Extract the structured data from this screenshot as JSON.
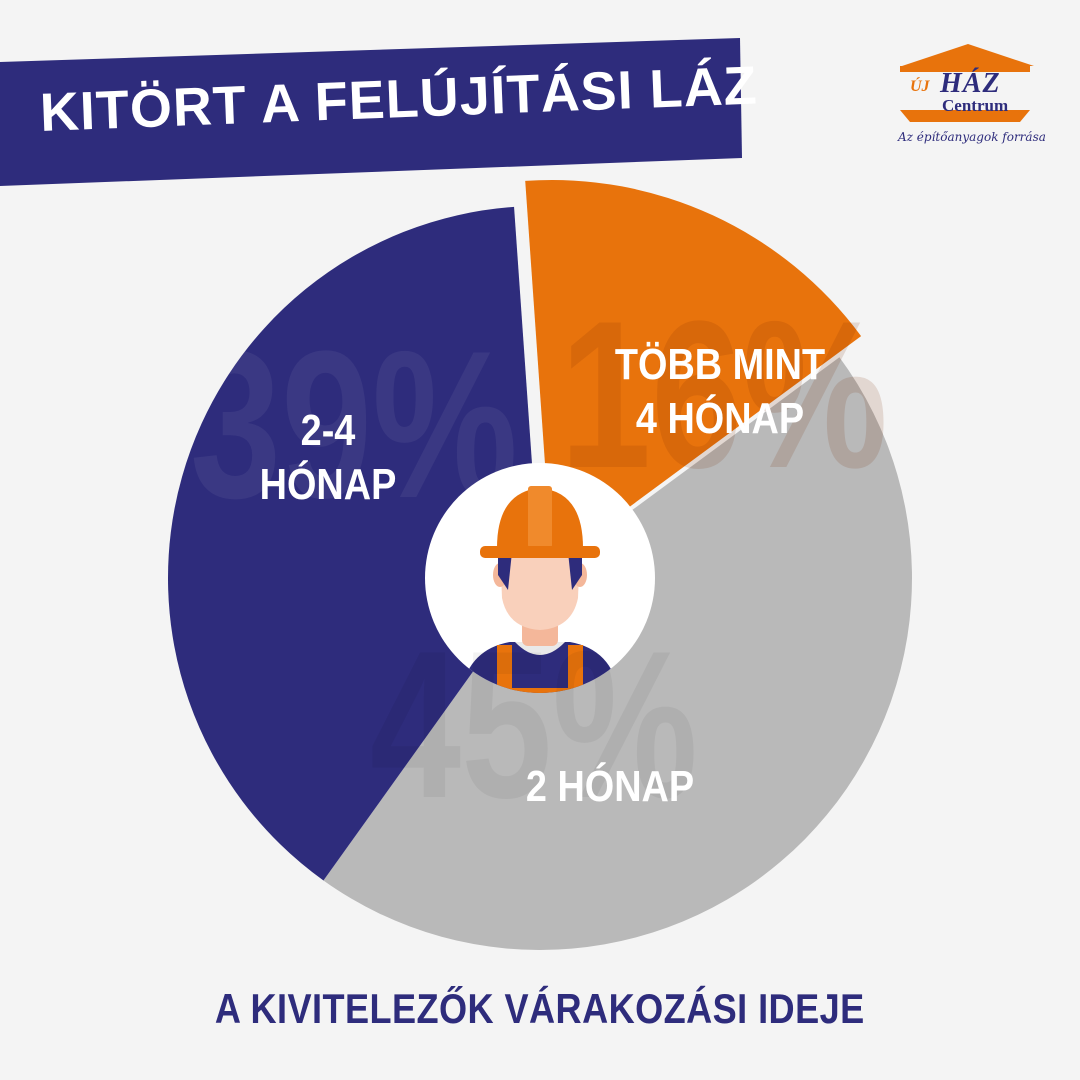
{
  "header": {
    "title": "KITÖRT A FELÚJÍTÁSI LÁZ"
  },
  "logo": {
    "uj": "ÚJ",
    "haz": "HÁZ",
    "centrum": "Centrum",
    "tagline": "Az építőanyagok forrása"
  },
  "colors": {
    "navy": "#2e2c7c",
    "orange": "#e8730c",
    "gray": "#b9b9b9",
    "background": "#f4f4f4"
  },
  "center_icon": "construction-worker-icon",
  "chart_data": {
    "type": "pie",
    "categories": [
      "TÖBB MINT 4 HÓNAP",
      "2 HÓNAP",
      "2-4 HÓNAP"
    ],
    "values": [
      16,
      45,
      39
    ],
    "value_labels": [
      "16%",
      "45%",
      "39%"
    ],
    "colors": [
      "#e8730c",
      "#b9b9b9",
      "#2e2c7c"
    ],
    "labels": {
      "more_than_4": [
        "TÖBB MINT",
        "4 HÓNAP"
      ],
      "two_months": "2 HÓNAP",
      "two_to_four": [
        "2-4",
        "HÓNAP"
      ]
    },
    "title": "A KIVITELEZŐK VÁRAKOZÁSI IDEJE"
  },
  "footer": {
    "text": "A KIVITELEZŐK VÁRAKOZÁSI IDEJE"
  }
}
